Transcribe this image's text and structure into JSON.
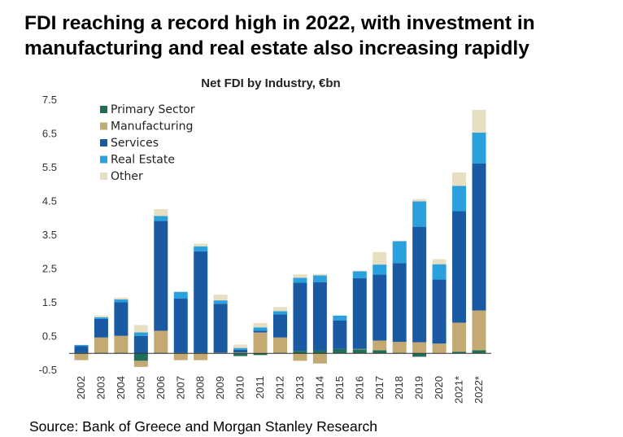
{
  "headline": {
    "line1": "FDI reaching a record high in 2022, with investment in",
    "line2": "manufacturing and real estate also increasing rapidly"
  },
  "source": "Source: Bank of Greece and Morgan Stanley Research",
  "chart_data": {
    "type": "bar",
    "stacked": true,
    "title": "Net FDI by Industry, €bn",
    "xlabel": "",
    "ylabel": "",
    "ylim": [
      -0.5,
      7.5
    ],
    "yticks": [
      -0.5,
      0.5,
      1.5,
      2.5,
      3.5,
      4.5,
      5.5,
      6.5,
      7.5
    ],
    "ytick_labels": [
      "-0.5",
      "0.5",
      "1.5",
      "2.5",
      "3.5",
      "4.5",
      "5.5",
      "6.5",
      "7.5"
    ],
    "grid": false,
    "legend_position": "top-left",
    "categories": [
      "2002",
      "2003",
      "2004",
      "2005",
      "2006",
      "2007",
      "2008",
      "2009",
      "2010",
      "2011",
      "2012",
      "2013",
      "2014",
      "2015",
      "2016",
      "2017",
      "2018",
      "2019",
      "2020",
      "2021*",
      "2022*"
    ],
    "series": [
      {
        "name": "Primary Sector",
        "color": "#1f6e5a",
        "values": [
          0.02,
          0.02,
          0.02,
          -0.22,
          0.02,
          0.02,
          0.02,
          0.01,
          -0.08,
          -0.05,
          0.02,
          0.07,
          0.08,
          0.13,
          0.12,
          0.09,
          0.02,
          -0.1,
          0.01,
          0.05,
          0.09
        ]
      },
      {
        "name": "Manufacturing",
        "color": "#c4aa72",
        "values": [
          -0.2,
          0.45,
          0.5,
          -0.18,
          0.65,
          -0.2,
          -0.2,
          0.01,
          0.03,
          0.62,
          0.45,
          -0.22,
          -0.3,
          0.0,
          0.01,
          0.29,
          0.32,
          0.33,
          0.28,
          0.86,
          1.18
        ]
      },
      {
        "name": "Services",
        "color": "#1a5aa3",
        "values": [
          0.2,
          0.55,
          1.0,
          0.52,
          3.25,
          1.6,
          3.0,
          1.45,
          0.08,
          0.05,
          0.68,
          2.02,
          2.03,
          0.84,
          2.1,
          1.95,
          2.33,
          3.42,
          1.9,
          3.3,
          4.35
        ]
      },
      {
        "name": "Real Estate",
        "color": "#2aa1dc",
        "values": [
          0.03,
          0.05,
          0.08,
          0.1,
          0.15,
          0.2,
          0.15,
          0.1,
          0.05,
          0.1,
          0.1,
          0.15,
          0.2,
          0.15,
          0.2,
          0.3,
          0.65,
          0.75,
          0.45,
          0.75,
          0.92
        ]
      },
      {
        "name": "Other",
        "color": "#e8dfc2",
        "values": [
          0.0,
          0.05,
          0.05,
          0.22,
          0.2,
          0.02,
          0.08,
          0.17,
          0.1,
          0.13,
          0.12,
          0.1,
          0.04,
          0.0,
          0.02,
          0.37,
          0.02,
          0.07,
          0.15,
          0.4,
          0.67
        ]
      }
    ]
  }
}
